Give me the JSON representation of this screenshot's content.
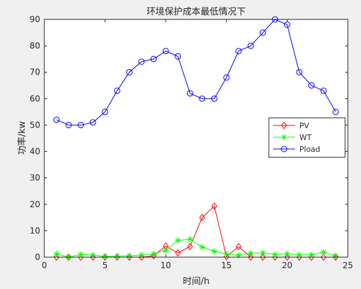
{
  "chart_data": {
    "type": "line",
    "title": "环境保护成本最低情况下",
    "xlabel": "时间/h",
    "ylabel": "功率/kw",
    "xlim": [
      0,
      25
    ],
    "ylim": [
      0,
      90
    ],
    "xticks": [
      0,
      5,
      10,
      15,
      20,
      25
    ],
    "yticks": [
      0,
      10,
      20,
      30,
      40,
      50,
      60,
      70,
      80,
      90
    ],
    "grid": false,
    "legend_position": "right",
    "x": [
      1,
      2,
      3,
      4,
      5,
      6,
      7,
      8,
      9,
      10,
      11,
      12,
      13,
      14,
      15,
      16,
      17,
      18,
      19,
      20,
      21,
      22,
      23,
      24
    ],
    "series": [
      {
        "name": "PV",
        "color": "#ff0000",
        "marker": "diamond",
        "values": [
          0,
          0,
          0,
          0,
          0,
          0,
          0,
          0,
          0.5,
          4.2,
          1.6,
          4,
          15,
          19.3,
          0.2,
          4,
          0,
          0,
          0,
          0,
          0,
          0,
          0,
          0
        ]
      },
      {
        "name": "WT",
        "color": "#00ff00",
        "marker": "star",
        "values": [
          1.2,
          0,
          1,
          0.8,
          0.3,
          0.4,
          0.5,
          0.8,
          1.2,
          2.5,
          6.3,
          6.8,
          3.8,
          2.2,
          1.2,
          0.7,
          1.5,
          1.6,
          1,
          1.3,
          0.9,
          0.9,
          1.9,
          0.5
        ]
      },
      {
        "name": "Pload",
        "color": "#0000ff",
        "marker": "circle",
        "values": [
          52,
          50,
          50,
          51,
          55,
          63,
          70,
          74,
          75,
          78,
          76,
          62,
          60,
          60,
          68,
          78,
          80,
          85,
          90,
          88,
          70,
          65,
          63,
          55
        ]
      }
    ]
  }
}
